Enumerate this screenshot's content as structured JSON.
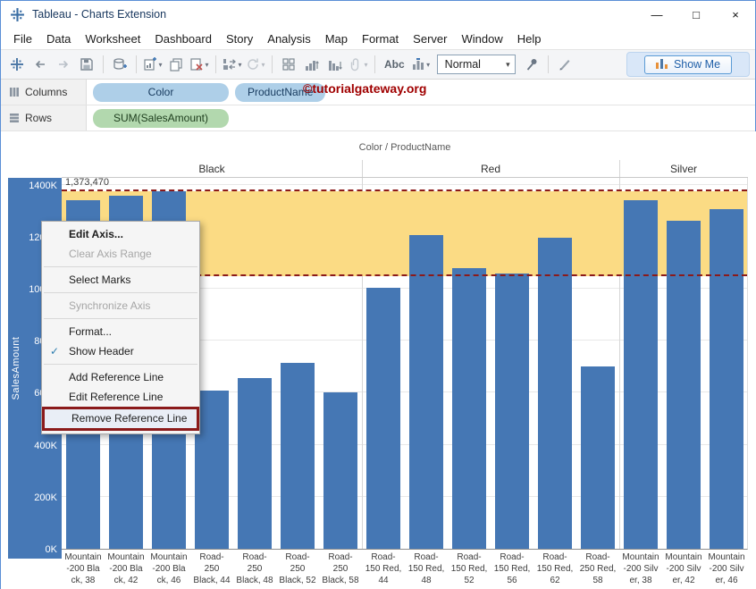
{
  "window": {
    "title": "Tableau - Charts Extension",
    "controls": [
      {
        "name": "minimize-button",
        "glyph": "—"
      },
      {
        "name": "maximize-button",
        "glyph": "□"
      },
      {
        "name": "close-button",
        "glyph": "×"
      }
    ]
  },
  "menu_bar": [
    "File",
    "Data",
    "Worksheet",
    "Dashboard",
    "Story",
    "Analysis",
    "Map",
    "Format",
    "Server",
    "Window",
    "Help"
  ],
  "toolbar": {
    "items": [
      {
        "icon": "tableau-logo"
      },
      {
        "icon": "undo"
      },
      {
        "icon": "redo"
      },
      {
        "icon": "save"
      },
      {
        "sep": true
      },
      {
        "icon": "add-data-source"
      },
      {
        "sep": true
      },
      {
        "icon": "new-worksheet",
        "caret": true
      },
      {
        "icon": "duplicate-sheet"
      },
      {
        "icon": "clear-sheet",
        "caret": true
      },
      {
        "sep": true
      },
      {
        "icon": "swap-axes",
        "caret": true
      },
      {
        "icon": "refresh",
        "caret": true,
        "disabled": true
      },
      {
        "sep": true
      },
      {
        "icon": "view-cards"
      },
      {
        "icon": "sort-ascending"
      },
      {
        "icon": "sort-descending"
      },
      {
        "icon": "group-members",
        "caret": true,
        "disabled": true
      },
      {
        "sep": true
      },
      {
        "text": "Abc",
        "name": "show-mark-labels-button"
      },
      {
        "icon": "mark-labels",
        "caret": true
      },
      {
        "select": "Normal",
        "name": "fit-dropdown"
      },
      {
        "icon": "pin"
      },
      {
        "sep": true
      },
      {
        "icon": "highlight"
      }
    ],
    "show_me_label": "Show Me"
  },
  "shelves": {
    "columns_label": "Columns",
    "rows_label": "Rows",
    "columns_pills": [
      "Color",
      "ProductName"
    ],
    "rows_pills": [
      "SUM(SalesAmount)"
    ],
    "watermark": "©tutorialgateway.org"
  },
  "context_menu": {
    "items": [
      {
        "label": "Edit Axis...",
        "bold": true
      },
      {
        "label": "Clear Axis Range",
        "disabled": true
      },
      {
        "sep": true
      },
      {
        "label": "Select Marks"
      },
      {
        "sep": true
      },
      {
        "label": "Synchronize Axis",
        "disabled": true
      },
      {
        "sep": true
      },
      {
        "label": "Format..."
      },
      {
        "label": "Show Header",
        "checked": true
      },
      {
        "sep": true
      },
      {
        "label": "Add Reference Line"
      },
      {
        "label": "Edit Reference Line"
      },
      {
        "label": "Remove Reference Line",
        "highlighted": true
      }
    ]
  },
  "chart_data": {
    "type": "bar",
    "field_header": "Color / ProductName",
    "ylabel": "SalesAmount",
    "unit": "K",
    "ylim": [
      0,
      1430
    ],
    "yticks": [
      0,
      200,
      400,
      600,
      800,
      1000,
      1200,
      1400
    ],
    "ytick_suffix": "K",
    "grid": true,
    "groups": [
      {
        "label": "Black",
        "bars": [
          {
            "label_lines": [
              "Mountain",
              "-200 Bla",
              "ck, 38"
            ],
            "value": 1340
          },
          {
            "label_lines": [
              "Mountain",
              "-200 Bla",
              "ck, 42"
            ],
            "value": 1358
          },
          {
            "label_lines": [
              "Mountain",
              "-200 Bla",
              "ck, 46"
            ],
            "value": 1373.47
          },
          {
            "label_lines": [
              "Road-",
              "250",
              "Black, 44"
            ],
            "value": 610
          },
          {
            "label_lines": [
              "Road-",
              "250",
              "Black, 48"
            ],
            "value": 655
          },
          {
            "label_lines": [
              "Road-",
              "250",
              "Black, 52"
            ],
            "value": 715
          },
          {
            "label_lines": [
              "Road-",
              "250",
              "Black, 58"
            ],
            "value": 600
          }
        ]
      },
      {
        "label": "Red",
        "bars": [
          {
            "label_lines": [
              "Road-",
              "150 Red,",
              "44"
            ],
            "value": 1005
          },
          {
            "label_lines": [
              "Road-",
              "150 Red,",
              "48"
            ],
            "value": 1205
          },
          {
            "label_lines": [
              "Road-",
              "150 Red,",
              "52"
            ],
            "value": 1080
          },
          {
            "label_lines": [
              "Road-",
              "150 Red,",
              "56"
            ],
            "value": 1060
          },
          {
            "label_lines": [
              "Road-",
              "150 Red,",
              "62"
            ],
            "value": 1195
          },
          {
            "label_lines": [
              "Road-",
              "250 Red,",
              "58"
            ],
            "value": 700
          }
        ]
      },
      {
        "label": "Silver",
        "bars": [
          {
            "label_lines": [
              "Mountain",
              "-200 Silv",
              "er, 38"
            ],
            "value": 1340
          },
          {
            "label_lines": [
              "Mountain",
              "-200 Silv",
              "er, 42"
            ],
            "value": 1262
          },
          {
            "label_lines": [
              "Mountain",
              "-200 Silv",
              "er, 46"
            ],
            "value": 1305
          }
        ]
      }
    ],
    "reference_band": {
      "from": 1050,
      "to": 1373.47,
      "label": "1,373,470"
    }
  },
  "colors": {
    "bar": "#4577b4",
    "axis_band": "#4678b6",
    "reference_band_fill": "#fbdb84",
    "reference_line": "#8b1a1a",
    "pill_blue": "#aecfe8",
    "pill_green": "#b2d8ae",
    "watermark": "#a00000",
    "show_me_text": "#1f5fa8"
  }
}
